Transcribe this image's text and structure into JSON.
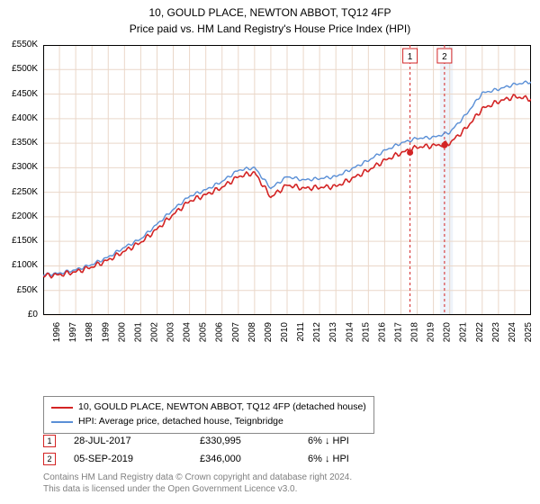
{
  "title_line1": "10, GOULD PLACE, NEWTON ABBOT, TQ12 4FP",
  "title_line2": "Price paid vs. HM Land Registry's House Price Index (HPI)",
  "chart": {
    "type": "line",
    "background_color": "#ffffff",
    "grid_color": "#ead7c9",
    "axis_color": "#000000",
    "axis_fontsize": 10,
    "xlim_years": [
      1995,
      2025
    ],
    "ylim": [
      0,
      550000
    ],
    "ytick_step": 50000,
    "ytick_labels": [
      "£0",
      "£50K",
      "£100K",
      "£150K",
      "£200K",
      "£250K",
      "£300K",
      "£350K",
      "£400K",
      "£450K",
      "£500K",
      "£550K"
    ],
    "xtick_years": [
      1995,
      1996,
      1997,
      1998,
      1999,
      2000,
      2001,
      2002,
      2003,
      2004,
      2005,
      2006,
      2007,
      2008,
      2009,
      2010,
      2011,
      2012,
      2013,
      2014,
      2015,
      2016,
      2017,
      2018,
      2019,
      2020,
      2021,
      2022,
      2023,
      2024,
      2025
    ],
    "pricepaid": {
      "label": "10, GOULD PLACE, NEWTON ABBOT, TQ12 4FP (detached house)",
      "color": "#d32424",
      "line_width": 1.6,
      "values_by_year": {
        "1995": 80000,
        "1996": 82000,
        "1997": 88000,
        "1998": 98000,
        "1999": 112000,
        "2000": 130000,
        "2001": 148000,
        "2002": 175000,
        "2003": 205000,
        "2004": 232000,
        "2005": 245000,
        "2006": 260000,
        "2007": 282000,
        "2008": 290000,
        "2009": 240000,
        "2010": 265000,
        "2011": 258000,
        "2012": 260000,
        "2013": 262000,
        "2014": 278000,
        "2015": 295000,
        "2016": 315000,
        "2017": 330000,
        "2018": 342000,
        "2019": 345000,
        "2020": 350000,
        "2021": 380000,
        "2022": 420000,
        "2023": 435000,
        "2024": 445000,
        "2025": 440000
      }
    },
    "hpi": {
      "label": "HPI: Average price, detached house, Teignbridge",
      "color": "#5a8fd6",
      "line_width": 1.4,
      "values_by_year": {
        "1995": 82000,
        "1996": 85000,
        "1997": 92000,
        "1998": 103000,
        "1999": 118000,
        "2000": 138000,
        "2001": 155000,
        "2002": 185000,
        "2003": 215000,
        "2004": 242000,
        "2005": 255000,
        "2006": 272000,
        "2007": 295000,
        "2008": 300000,
        "2009": 258000,
        "2010": 282000,
        "2011": 275000,
        "2012": 278000,
        "2013": 282000,
        "2014": 298000,
        "2015": 315000,
        "2016": 335000,
        "2017": 350000,
        "2018": 360000,
        "2019": 362000,
        "2020": 372000,
        "2021": 408000,
        "2022": 452000,
        "2023": 460000,
        "2024": 470000,
        "2025": 475000
      }
    },
    "highlight_band": {
      "from_year": 2019.4,
      "to_year": 2020.2,
      "fill": "#eef3fa"
    },
    "sale_markers": [
      {
        "n": "1",
        "year": 2017.56,
        "price": 330995,
        "border": "#d32424",
        "vline_color": "#d32424"
      },
      {
        "n": "2",
        "year": 2019.68,
        "price": 346000,
        "border": "#d32424",
        "vline_color": "#d32424"
      }
    ],
    "sale_dot_color": "#d32424",
    "sale_label_bg": "#ffffff"
  },
  "legend": {
    "rows": [
      {
        "color": "#d32424",
        "label": "10, GOULD PLACE, NEWTON ABBOT, TQ12 4FP (detached house)"
      },
      {
        "color": "#5a8fd6",
        "label": "HPI: Average price, detached house, Teignbridge"
      }
    ]
  },
  "markers_table": {
    "rows": [
      {
        "n": "1",
        "border": "#d32424",
        "date": "28-JUL-2017",
        "price": "£330,995",
        "delta": "6% ↓ HPI"
      },
      {
        "n": "2",
        "border": "#d32424",
        "date": "05-SEP-2019",
        "price": "£346,000",
        "delta": "6% ↓ HPI"
      }
    ]
  },
  "footnote_line1": "Contains HM Land Registry data © Crown copyright and database right 2024.",
  "footnote_line2": "This data is licensed under the Open Government Licence v3.0."
}
